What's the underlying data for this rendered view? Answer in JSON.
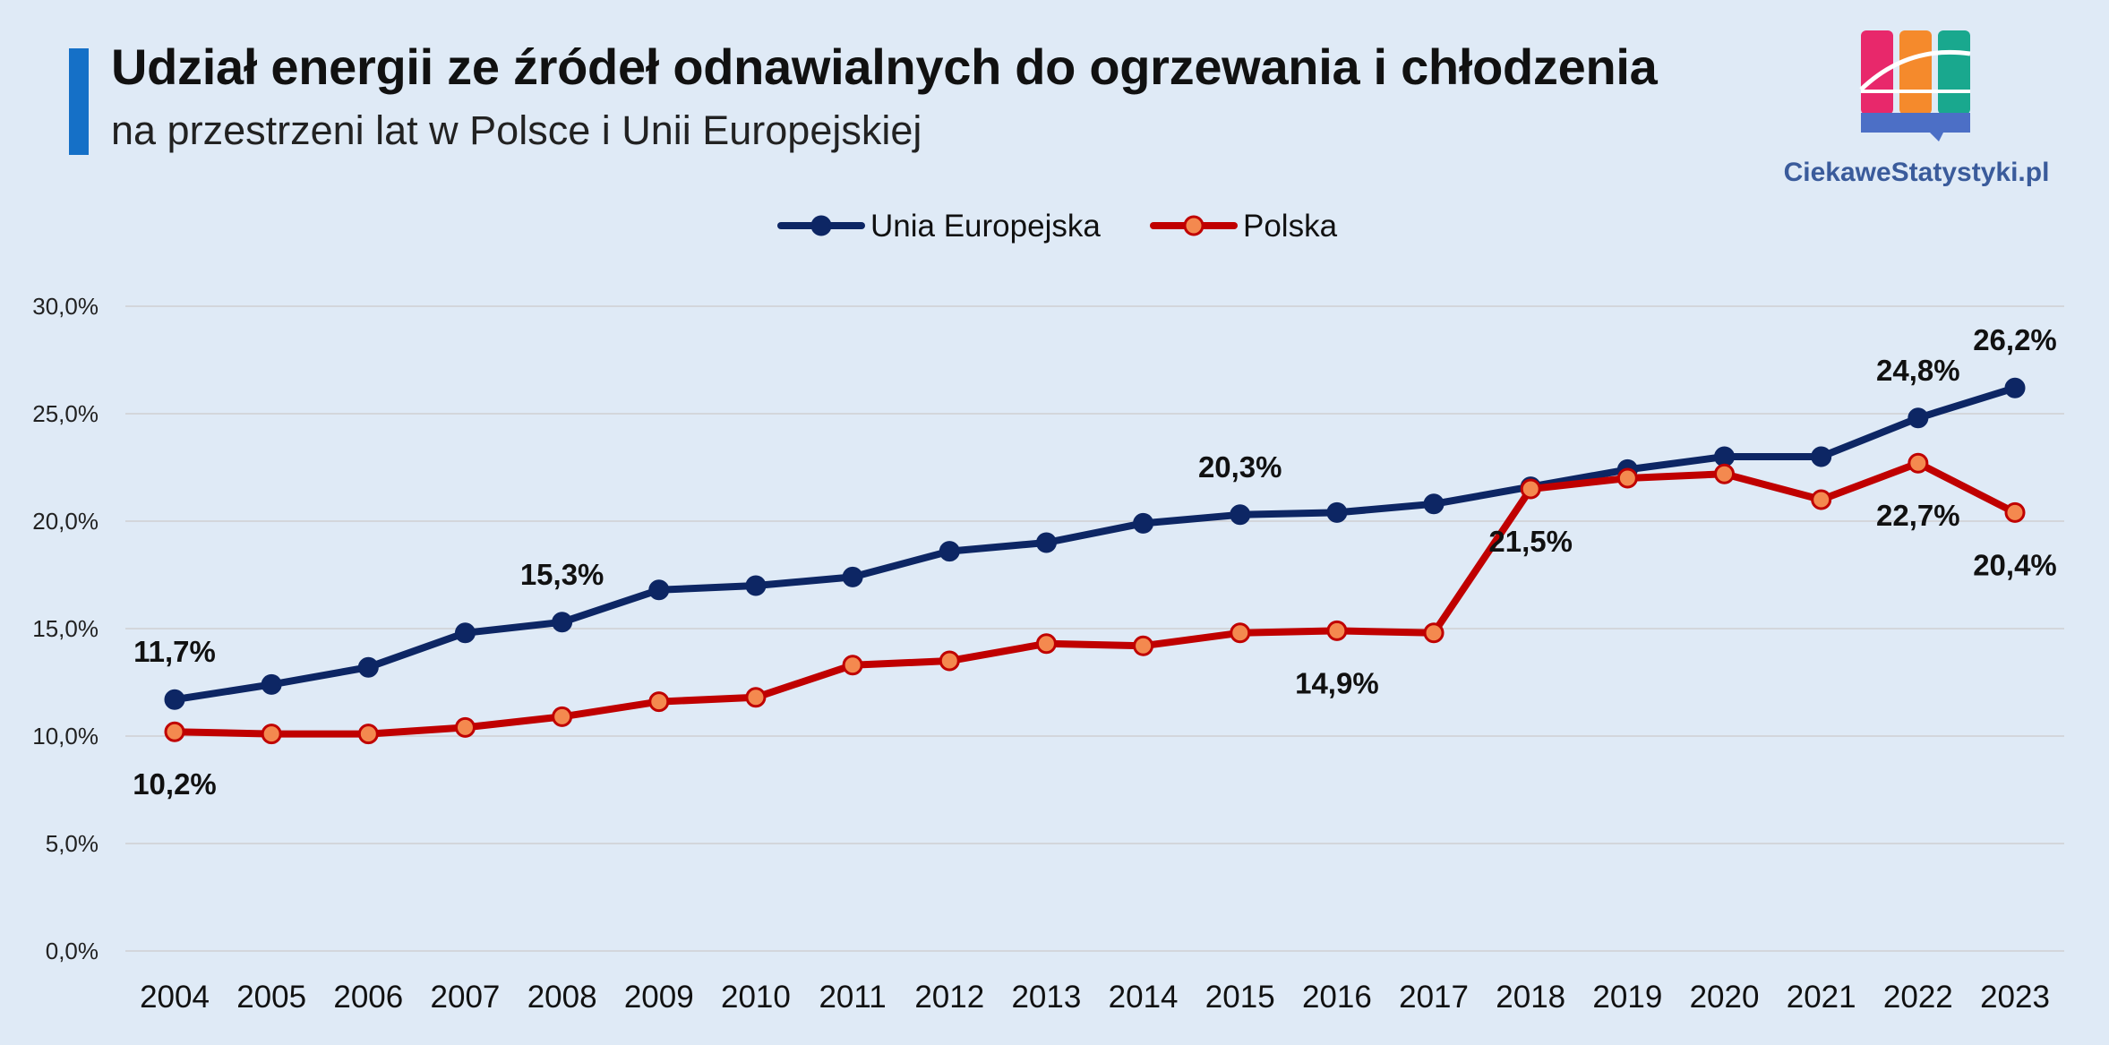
{
  "header": {
    "title": "Udział energii ze źródeł odnawialnych do ogrzewania i chłodzenia",
    "subtitle": "na przestrzeni lat w Polsce i Unii Europejskiej"
  },
  "logo": {
    "text": "CiekaweStatystyki.pl",
    "icon": "chart-logo-icon",
    "colors": [
      "#e8286b",
      "#f58a2c",
      "#19a88e",
      "#4c6fc6"
    ]
  },
  "chart_data": {
    "type": "line",
    "title": "Udział energii ze źródeł odnawialnych do ogrzewania i chłodzenia",
    "xlabel": "",
    "ylabel": "",
    "ylim": [
      0,
      30
    ],
    "yticks": [
      0,
      5,
      10,
      15,
      20,
      25,
      30
    ],
    "ytick_labels": [
      "0,0%",
      "5,0%",
      "10,0%",
      "15,0%",
      "20,0%",
      "25,0%",
      "30,0%"
    ],
    "grid": true,
    "legend_position": "top-center",
    "categories": [
      "2004",
      "2005",
      "2006",
      "2007",
      "2008",
      "2009",
      "2010",
      "2011",
      "2012",
      "2013",
      "2014",
      "2015",
      "2016",
      "2017",
      "2018",
      "2019",
      "2020",
      "2021",
      "2022",
      "2023"
    ],
    "series": [
      {
        "name": "Unia Europejska",
        "color": "#0d2664",
        "marker_fill": "#0d2664",
        "values": [
          11.7,
          12.4,
          13.2,
          14.8,
          15.3,
          16.8,
          17.0,
          17.4,
          18.6,
          19.0,
          19.9,
          20.3,
          20.4,
          20.8,
          21.6,
          22.4,
          23.0,
          23.0,
          24.8,
          26.2
        ],
        "labels": [
          {
            "index": 0,
            "text": "11,7%",
            "position": "above"
          },
          {
            "index": 4,
            "text": "15,3%",
            "position": "above"
          },
          {
            "index": 11,
            "text": "20,3%",
            "position": "above"
          },
          {
            "index": 18,
            "text": "24,8%",
            "position": "above"
          },
          {
            "index": 19,
            "text": "26,2%",
            "position": "above"
          }
        ]
      },
      {
        "name": "Polska",
        "color": "#c00000",
        "marker_fill": "#f4894f",
        "values": [
          10.2,
          10.1,
          10.1,
          10.4,
          10.9,
          11.6,
          11.8,
          13.3,
          13.5,
          14.3,
          14.2,
          14.8,
          14.9,
          14.8,
          21.5,
          22.0,
          22.2,
          21.0,
          22.7,
          20.4
        ],
        "labels": [
          {
            "index": 0,
            "text": "10,2%",
            "position": "below"
          },
          {
            "index": 12,
            "text": "14,9%",
            "position": "below"
          },
          {
            "index": 14,
            "text": "21,5%",
            "position": "below"
          },
          {
            "index": 18,
            "text": "22,7%",
            "position": "below"
          },
          {
            "index": 19,
            "text": "20,4%",
            "position": "below"
          }
        ]
      }
    ]
  }
}
